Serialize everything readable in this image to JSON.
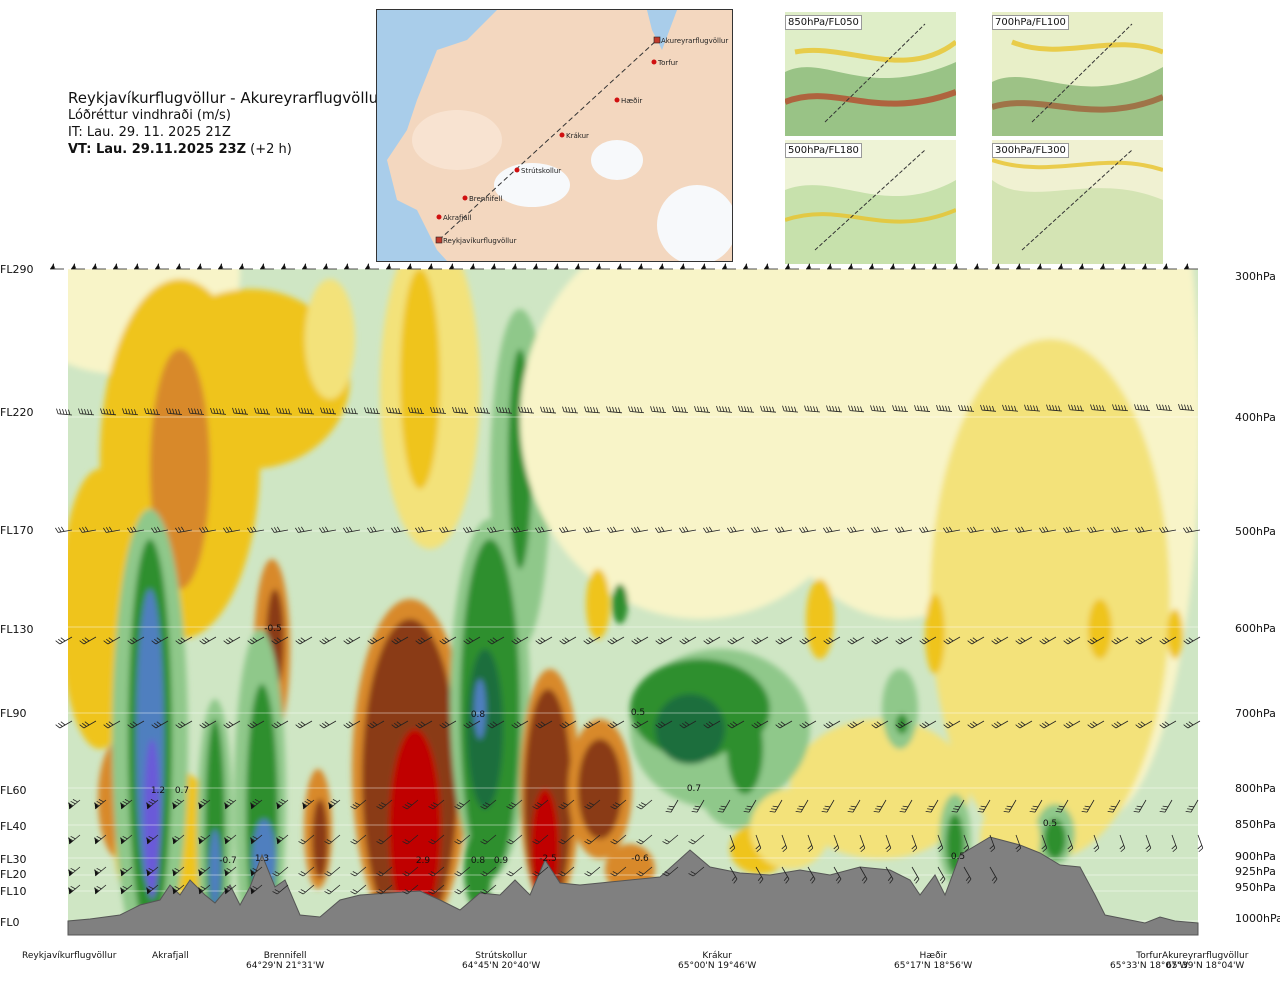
{
  "header": {
    "route": "Reykjavíkurflugvöllur - Akureyrarflugvöllur",
    "variable": "Lóðréttur vindhraði (m/s)",
    "issue_time": "IT: Lau. 29. 11. 2025 21Z",
    "valid_time": "VT: Lau. 29.11.2025 23Z",
    "lead": "(+2 h)"
  },
  "route_map": {
    "waypoints": [
      "Akureyrarflugvöllur",
      "Torfur",
      "Hæðir",
      "Krákur",
      "Strútskollur",
      "Brennifell",
      "Akrafjall",
      "Reykjavíkurflugvöllur"
    ]
  },
  "thumbnails": [
    "850hPa/FL050",
    "700hPa/FL100",
    "500hPa/FL180",
    "300hPa/FL300"
  ],
  "chart_data": {
    "type": "heatmap",
    "title": "Lóðréttur vindhraði (m/s)",
    "xlabel": "",
    "ylabel": "",
    "y_left_levels": [
      "FL290",
      "FL220",
      "FL170",
      "FL130",
      "FL90",
      "FL60",
      "FL40",
      "FL30",
      "FL20",
      "FL10",
      "FL0"
    ],
    "y_right_levels": [
      "300hPa",
      "400hPa",
      "500hPa",
      "600hPa",
      "700hPa",
      "800hPa",
      "850hPa",
      "900hPa",
      "925hPa",
      "950hPa",
      "1000hPa"
    ],
    "locations": [
      {
        "name": "Reykjavíkurflugvöllur",
        "coord": ""
      },
      {
        "name": "Akrafjall",
        "coord": ""
      },
      {
        "name": "Brennifell",
        "coord": "64°29'N 21°31'W"
      },
      {
        "name": "Strútskollur",
        "coord": "64°45'N 20°40'W"
      },
      {
        "name": "Krákur",
        "coord": "65°00'N 19°46'W"
      },
      {
        "name": "Hæðir",
        "coord": "65°17'N 18°56'W"
      },
      {
        "name": "Torfur",
        "coord": "65°33'N 18°07'W"
      },
      {
        "name": "Akureyrarflugvöllur",
        "coord": "65°39'N 18°04'W"
      }
    ],
    "annotations": [
      "-0.5",
      "0.8",
      "0.5",
      "1.2",
      "0.7",
      "0.7",
      "-0.7",
      "1.3",
      "2.9",
      "0.8",
      "0.9",
      "-2.5",
      "-0.6",
      "0.5",
      "0.5"
    ],
    "colors": {
      "strong_down": "#c00000",
      "down": "#8a3a14",
      "mod_down": "#d8892a",
      "weak_down": "#efc41a",
      "slight_down": "#f3e27a",
      "neutral": "#f8f4c8",
      "slight_up": "#cfe6c4",
      "weak_up": "#8fc88a",
      "up": "#2f8f2f",
      "strong_up": "#1e6e3e",
      "stronger_up": "#4f7fbf",
      "max_up": "#6a5ad8",
      "terrain": "#808080"
    }
  }
}
